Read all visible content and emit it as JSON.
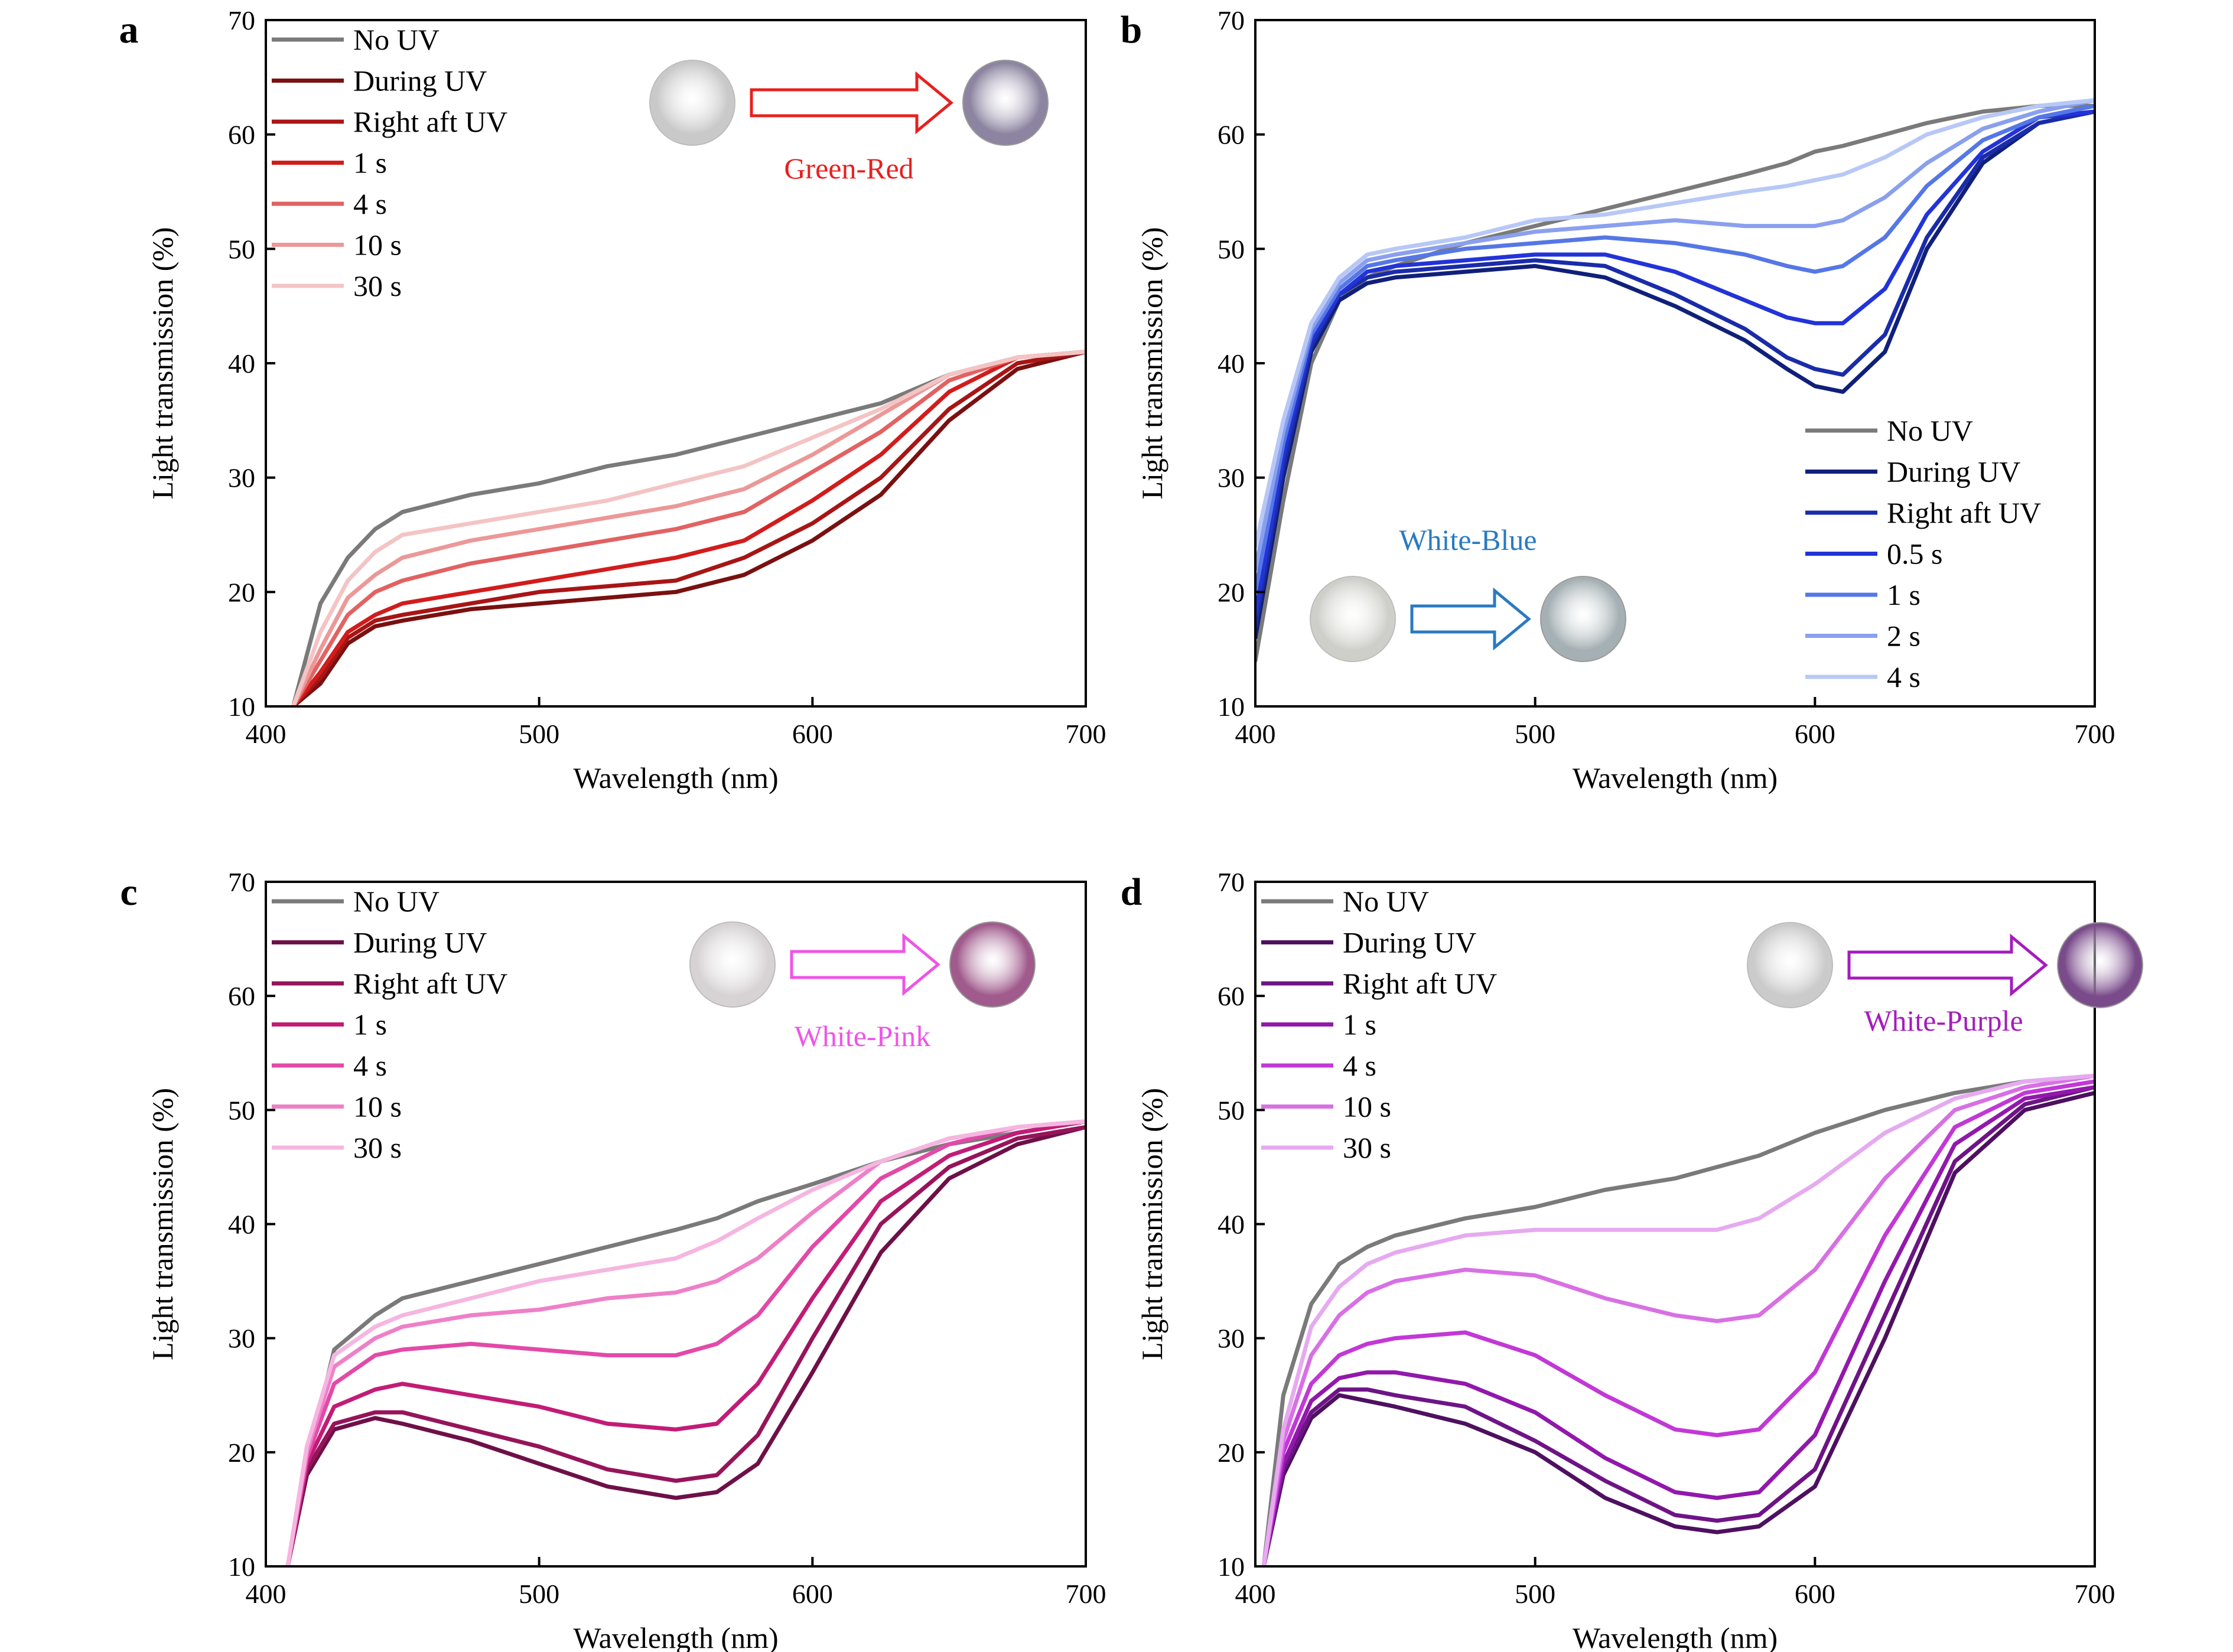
{
  "figure": {
    "panels": [
      {
        "letter": "a",
        "inset_label": "Green-Red",
        "inset_color": "#e8201e",
        "disc_left": "#c9c9c9",
        "disc_right": "#8c84a0",
        "legend_pos": "top-left",
        "inset_pos": "top-right"
      },
      {
        "letter": "b",
        "inset_label": "White-Blue",
        "inset_color": "#2a7ac0",
        "disc_left": "#cfcfca",
        "disc_right": "#a5b0b4",
        "legend_pos": "bottom-right",
        "inset_pos": "bottom-left"
      },
      {
        "letter": "c",
        "inset_label": "White-Pink",
        "inset_color": "#ee55e6",
        "disc_left": "#d7d3d5",
        "disc_right": "#a05a8c",
        "legend_pos": "top-left",
        "inset_pos": "top-right"
      },
      {
        "letter": "d",
        "inset_label": "White-Purple",
        "inset_color": "#a51cbd",
        "disc_left": "#cbcbcb",
        "disc_right": "#7a4b8a",
        "legend_pos": "top-left",
        "inset_pos": "top-right"
      }
    ]
  },
  "chart_data": [
    {
      "type": "line",
      "xlabel": "Wavelength (nm)",
      "ylabel": "Light transmission (%)",
      "xlim": [
        400,
        700
      ],
      "ylim": [
        10,
        70
      ],
      "xticks": [
        "400",
        "500",
        "600",
        "700"
      ],
      "yticks": [
        "10",
        "20",
        "30",
        "40",
        "50",
        "60",
        "70"
      ],
      "x": [
        410,
        420,
        430,
        440,
        450,
        475,
        500,
        525,
        550,
        575,
        600,
        625,
        650,
        675,
        700
      ],
      "series": [
        {
          "name": "No UV",
          "color": "#7a7a7a",
          "values": [
            10,
            19,
            23,
            25.5,
            27,
            28.5,
            29.5,
            31,
            32,
            33.5,
            35,
            36.5,
            39,
            40.5,
            41
          ]
        },
        {
          "name": "During UV",
          "color": "#7a1010",
          "values": [
            10,
            12,
            15.5,
            17,
            17.5,
            18.5,
            19,
            19.5,
            20,
            21.5,
            24.5,
            28.5,
            35,
            39.5,
            41
          ]
        },
        {
          "name": "Right aft UV",
          "color": "#a81515",
          "values": [
            10,
            12.5,
            16,
            17.5,
            18,
            19,
            20,
            20.5,
            21,
            23,
            26,
            30,
            36,
            40,
            41
          ]
        },
        {
          "name": "1 s",
          "color": "#d21c1c",
          "values": [
            10,
            13,
            16.5,
            18,
            19,
            20,
            21,
            22,
            23,
            24.5,
            28,
            32,
            37.5,
            40.5,
            41
          ]
        },
        {
          "name": "4 s",
          "color": "#e26262",
          "values": [
            10,
            14,
            18,
            20,
            21,
            22.5,
            23.5,
            24.5,
            25.5,
            27,
            30.5,
            34,
            38.5,
            40.5,
            41
          ]
        },
        {
          "name": "10 s",
          "color": "#ec9898",
          "values": [
            10,
            15,
            19.5,
            21.5,
            23,
            24.5,
            25.5,
            26.5,
            27.5,
            29,
            32,
            35.5,
            39,
            40.5,
            41
          ]
        },
        {
          "name": "30 s",
          "color": "#f4c4c4",
          "values": [
            10,
            16.5,
            21,
            23.5,
            25,
            26,
            27,
            28,
            29.5,
            31,
            33.5,
            36,
            39,
            40.5,
            41
          ]
        }
      ]
    },
    {
      "type": "line",
      "xlabel": "Wavelength (nm)",
      "ylabel": "Light transmission (%)",
      "xlim": [
        400,
        700
      ],
      "ylim": [
        10,
        70
      ],
      "xticks": [
        "400",
        "500",
        "600",
        "700"
      ],
      "yticks": [
        "10",
        "20",
        "30",
        "40",
        "50",
        "60",
        "70"
      ],
      "x": [
        400,
        410,
        420,
        430,
        440,
        450,
        475,
        500,
        525,
        550,
        575,
        590,
        600,
        610,
        625,
        640,
        660,
        680,
        700
      ],
      "series": [
        {
          "name": "No UV",
          "color": "#7a7a7a",
          "values": [
            14,
            28,
            40,
            45.5,
            47.5,
            48.5,
            50.5,
            52,
            53.5,
            55,
            56.5,
            57.5,
            58.5,
            59,
            60,
            61,
            62,
            62.5,
            62.5
          ]
        },
        {
          "name": "During UV",
          "color": "#10207a",
          "values": [
            16,
            30,
            41,
            45.5,
            47,
            47.5,
            48,
            48.5,
            47.5,
            45,
            42,
            39.5,
            38,
            37.5,
            41,
            50,
            57.5,
            61,
            62
          ]
        },
        {
          "name": "Right aft UV",
          "color": "#1a2ca8",
          "values": [
            17,
            31,
            41.5,
            46,
            47.5,
            48,
            48.5,
            49,
            48.5,
            46,
            43,
            40.5,
            39.5,
            39,
            42.5,
            51,
            58,
            61,
            62
          ]
        },
        {
          "name": "0.5 s",
          "color": "#2233d8",
          "values": [
            18,
            32,
            42,
            46,
            48,
            48.5,
            49,
            49.5,
            49.5,
            48,
            45.5,
            44,
            43.5,
            43.5,
            46.5,
            53,
            58.5,
            61.5,
            62
          ]
        },
        {
          "name": "1 s",
          "color": "#5577e6",
          "values": [
            20,
            33,
            42.5,
            46.5,
            48.5,
            49,
            50,
            50.5,
            51,
            50.5,
            49.5,
            48.5,
            48,
            48.5,
            51,
            55.5,
            59.5,
            61.5,
            62.5
          ]
        },
        {
          "name": "2 s",
          "color": "#8aa0ee",
          "values": [
            22,
            34,
            43,
            47,
            49,
            49.5,
            50.5,
            51.5,
            52,
            52.5,
            52,
            52,
            52,
            52.5,
            54.5,
            57.5,
            60.5,
            62,
            63
          ]
        },
        {
          "name": "4 s",
          "color": "#b8c8f6",
          "values": [
            24,
            35,
            43.5,
            47.5,
            49.5,
            50,
            51,
            52.5,
            53,
            54,
            55,
            55.5,
            56,
            56.5,
            58,
            60,
            61.5,
            62.5,
            63
          ]
        }
      ]
    },
    {
      "type": "line",
      "xlabel": "Wavelength (nm)",
      "ylabel": "Light transmission (%)",
      "xlim": [
        400,
        700
      ],
      "ylim": [
        10,
        70
      ],
      "xticks": [
        "400",
        "500",
        "600",
        "700"
      ],
      "yticks": [
        "10",
        "20",
        "30",
        "40",
        "50",
        "60",
        "70"
      ],
      "x": [
        408,
        415,
        425,
        440,
        450,
        475,
        500,
        525,
        550,
        565,
        580,
        600,
        625,
        650,
        675,
        700
      ],
      "series": [
        {
          "name": "No UV",
          "color": "#7a7a7a",
          "values": [
            10,
            19,
            29,
            32,
            33.5,
            35,
            36.5,
            38,
            39.5,
            40.5,
            42,
            43.5,
            45.5,
            47,
            48,
            49
          ]
        },
        {
          "name": "During UV",
          "color": "#6e1048",
          "values": [
            10,
            18,
            22,
            23,
            22.5,
            21,
            19,
            17,
            16,
            16.5,
            19,
            27,
            37.5,
            44,
            47,
            48.5
          ]
        },
        {
          "name": "Right aft UV",
          "color": "#96145a",
          "values": [
            10,
            18.5,
            22.5,
            23.5,
            23.5,
            22,
            20.5,
            18.5,
            17.5,
            18,
            21.5,
            30,
            40,
            45,
            47.5,
            48.5
          ]
        },
        {
          "name": "1 s",
          "color": "#c21c76",
          "values": [
            10,
            19,
            24,
            25.5,
            26,
            25,
            24,
            22.5,
            22,
            22.5,
            26,
            33.5,
            42,
            46,
            48,
            49
          ]
        },
        {
          "name": "4 s",
          "color": "#e24aa8",
          "values": [
            10,
            19.5,
            26,
            28.5,
            29,
            29.5,
            29,
            28.5,
            28.5,
            29.5,
            32,
            38,
            44,
            47,
            48.5,
            49
          ]
        },
        {
          "name": "10 s",
          "color": "#ee80c8",
          "values": [
            10,
            20,
            27.5,
            30,
            31,
            32,
            32.5,
            33.5,
            34,
            35,
            37,
            41,
            45.5,
            47.5,
            48.5,
            49
          ]
        },
        {
          "name": "30 s",
          "color": "#f5b6e0",
          "values": [
            10,
            20.5,
            28.5,
            31,
            32,
            33.5,
            35,
            36,
            37,
            38.5,
            40.5,
            43,
            45.5,
            47.5,
            48.5,
            49
          ]
        }
      ]
    },
    {
      "type": "line",
      "xlabel": "Wavelength (nm)",
      "ylabel": "Light transmission (%)",
      "xlim": [
        400,
        700
      ],
      "ylim": [
        10,
        70
      ],
      "xticks": [
        "400",
        "500",
        "600",
        "700"
      ],
      "yticks": [
        "10",
        "20",
        "30",
        "40",
        "50",
        "60",
        "70"
      ],
      "x": [
        403,
        410,
        420,
        430,
        440,
        450,
        475,
        500,
        525,
        550,
        565,
        580,
        600,
        625,
        650,
        675,
        700
      ],
      "series": [
        {
          "name": "No UV",
          "color": "#7a7a7a",
          "values": [
            10,
            25,
            33,
            36.5,
            38,
            39,
            40.5,
            41.5,
            43,
            44,
            45,
            46,
            48,
            50,
            51.5,
            52.5,
            53
          ]
        },
        {
          "name": "During UV",
          "color": "#4e1060",
          "values": [
            10,
            18,
            23,
            25,
            24.5,
            24,
            22.5,
            20,
            16,
            13.5,
            13,
            13.5,
            17,
            30,
            44.5,
            50,
            51.5
          ]
        },
        {
          "name": "Right aft UV",
          "color": "#6e1486",
          "values": [
            10,
            18.5,
            23.5,
            25.5,
            25.5,
            25,
            24,
            21,
            17.5,
            14.5,
            14,
            14.5,
            18.5,
            32,
            45.5,
            50.5,
            52
          ]
        },
        {
          "name": "1 s",
          "color": "#9218ac",
          "values": [
            10,
            19,
            24.5,
            26.5,
            27,
            27,
            26,
            23.5,
            19.5,
            16.5,
            16,
            16.5,
            21.5,
            35,
            47,
            51,
            52
          ]
        },
        {
          "name": "4 s",
          "color": "#c238d6",
          "values": [
            10,
            20,
            26,
            28.5,
            29.5,
            30,
            30.5,
            28.5,
            25,
            22,
            21.5,
            22,
            27,
            39,
            48.5,
            51.5,
            52.5
          ]
        },
        {
          "name": "10 s",
          "color": "#d870e4",
          "values": [
            10,
            21,
            28.5,
            32,
            34,
            35,
            36,
            35.5,
            33.5,
            32,
            31.5,
            32,
            36,
            44,
            50,
            52,
            53
          ]
        },
        {
          "name": "30 s",
          "color": "#e6aaf0",
          "values": [
            10,
            22,
            31,
            34.5,
            36.5,
            37.5,
            39,
            39.5,
            39.5,
            39.5,
            39.5,
            40.5,
            43.5,
            48,
            51,
            52.5,
            53
          ]
        }
      ]
    }
  ]
}
